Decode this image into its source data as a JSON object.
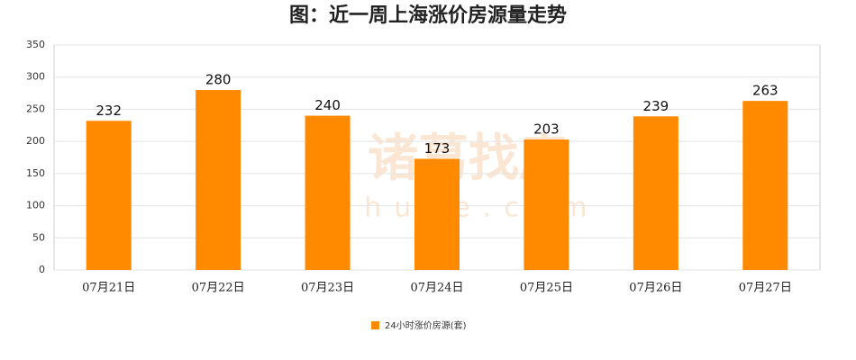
{
  "chart_data": {
    "type": "bar",
    "title": "图：近一周上海涨价房源量走势",
    "categories": [
      "07月21日",
      "07月22日",
      "07月23日",
      "07月24日",
      "07月25日",
      "07月26日",
      "07月27日"
    ],
    "series": [
      {
        "name": "24小时涨价房源(套)",
        "color": "#ff8a00",
        "values": [
          232,
          280,
          240,
          173,
          203,
          239,
          263
        ]
      }
    ],
    "ylim": [
      0,
      350
    ],
    "yticks": [
      0,
      50,
      100,
      150,
      200,
      250,
      300,
      350
    ],
    "grid": true,
    "legend": "bottom",
    "watermark": [
      "诸葛找房",
      "zhuge.com"
    ]
  }
}
